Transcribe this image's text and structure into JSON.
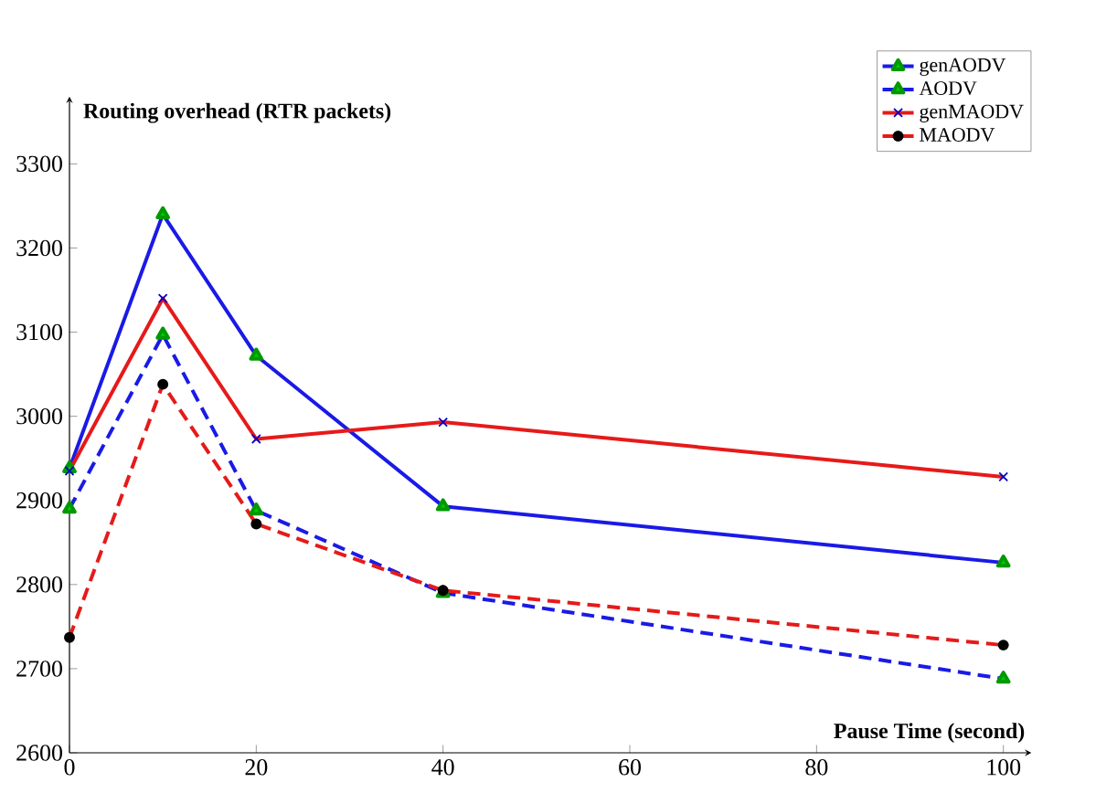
{
  "chart_data": {
    "type": "line",
    "xlabel": "Pause Time (second)",
    "ylabel": "Routing overhead (RTR packets)",
    "x": [
      0,
      10,
      20,
      40,
      100
    ],
    "series": [
      {
        "name": "genAODV",
        "color": "#1a1ae6",
        "values": [
          2938,
          3240,
          3072,
          2893,
          2826
        ],
        "marker": "triangle",
        "line_style": "solid"
      },
      {
        "name": "AODV",
        "color": "#1a1ae6",
        "values": [
          2890,
          3097,
          2888,
          2790,
          2688
        ],
        "marker": "triangle",
        "line_style": "dashed"
      },
      {
        "name": "genMAODV",
        "color": "#e61a1a",
        "values": [
          2935,
          3140,
          2973,
          2993,
          2928
        ],
        "marker": "cross",
        "line_style": "solid"
      },
      {
        "name": "MAODV",
        "color": "#e61a1a",
        "values": [
          2737,
          3038,
          2872,
          2793,
          2728
        ],
        "marker": "circle",
        "line_style": "dashed"
      }
    ],
    "xlim": [
      0,
      103
    ],
    "ylim": [
      2600,
      3380
    ],
    "xticks": [
      0,
      20,
      40,
      60,
      80,
      100
    ],
    "yticks": [
      2600,
      2700,
      2800,
      2900,
      3000,
      3100,
      3200,
      3300
    ],
    "grid": false,
    "legend": "top right"
  }
}
